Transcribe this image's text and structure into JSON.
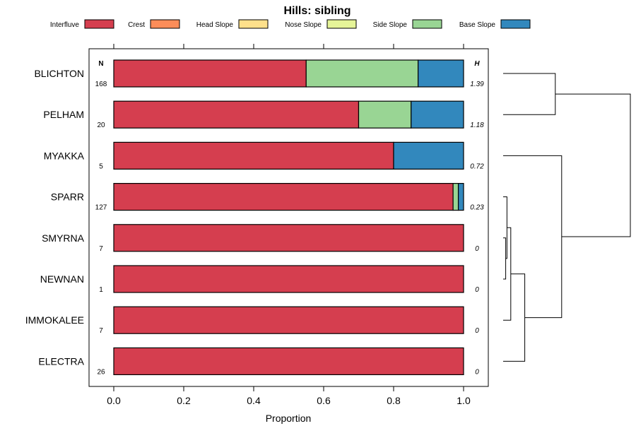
{
  "chart_data": {
    "type": "bar",
    "orientation": "horizontal-stacked",
    "title": "Hills: sibling",
    "xlabel": "Proportion",
    "ylabel": "",
    "xlim": [
      0,
      1
    ],
    "xticks": [
      "0.0",
      "0.2",
      "0.4",
      "0.6",
      "0.8",
      "1.0"
    ],
    "n_header": "N",
    "h_header": "H",
    "legend": {
      "placement": "top",
      "entries": [
        {
          "name": "Interfluve",
          "color": "#d53e4f"
        },
        {
          "name": "Crest",
          "color": "#fc8d59"
        },
        {
          "name": "Head Slope",
          "color": "#fee08b"
        },
        {
          "name": "Nose Slope",
          "color": "#e6f598"
        },
        {
          "name": "Side Slope",
          "color": "#99d594"
        },
        {
          "name": "Base Slope",
          "color": "#3288bd"
        }
      ]
    },
    "categories": [
      "BLICHTON",
      "PELHAM",
      "MYAKKA",
      "SPARR",
      "SMYRNA",
      "NEWNAN",
      "IMMOKALEE",
      "ELECTRA"
    ],
    "n": [
      "168",
      "20",
      "5",
      "127",
      "7",
      "1",
      "7",
      "26"
    ],
    "h": [
      "1.39",
      "1.18",
      "0.72",
      "0.23",
      "0",
      "0",
      "0",
      "0"
    ],
    "series": [
      {
        "name": "Interfluve",
        "values": [
          0.55,
          0.7,
          0.8,
          0.97,
          1.0,
          1.0,
          1.0,
          1.0
        ]
      },
      {
        "name": "Crest",
        "values": [
          0,
          0,
          0,
          0,
          0,
          0,
          0,
          0
        ]
      },
      {
        "name": "Head Slope",
        "values": [
          0,
          0,
          0,
          0,
          0,
          0,
          0,
          0
        ]
      },
      {
        "name": "Nose Slope",
        "values": [
          0,
          0,
          0,
          0,
          0,
          0,
          0,
          0
        ]
      },
      {
        "name": "Side Slope",
        "values": [
          0.32,
          0.15,
          0,
          0.015,
          0,
          0,
          0,
          0
        ]
      },
      {
        "name": "Base Slope",
        "values": [
          0.13,
          0.15,
          0.2,
          0.015,
          0,
          0,
          0,
          0
        ]
      }
    ],
    "dendrogram": {
      "merges": [
        {
          "left": "SMYRNA",
          "right": "NEWNAN",
          "height": 0.02
        },
        {
          "left": "SPARR",
          "right": "m0",
          "height": 0.03
        },
        {
          "left": "m1",
          "right": "IMMOKALEE",
          "height": 0.06
        },
        {
          "left": "m2",
          "right": "ELECTRA",
          "height": 0.17
        },
        {
          "left": "BLICHTON",
          "right": "PELHAM",
          "height": 0.41
        },
        {
          "left": "MYAKKA",
          "right": "m3",
          "height": 0.46
        },
        {
          "left": "m4",
          "right": "m5",
          "height": 1.0
        }
      ]
    }
  }
}
